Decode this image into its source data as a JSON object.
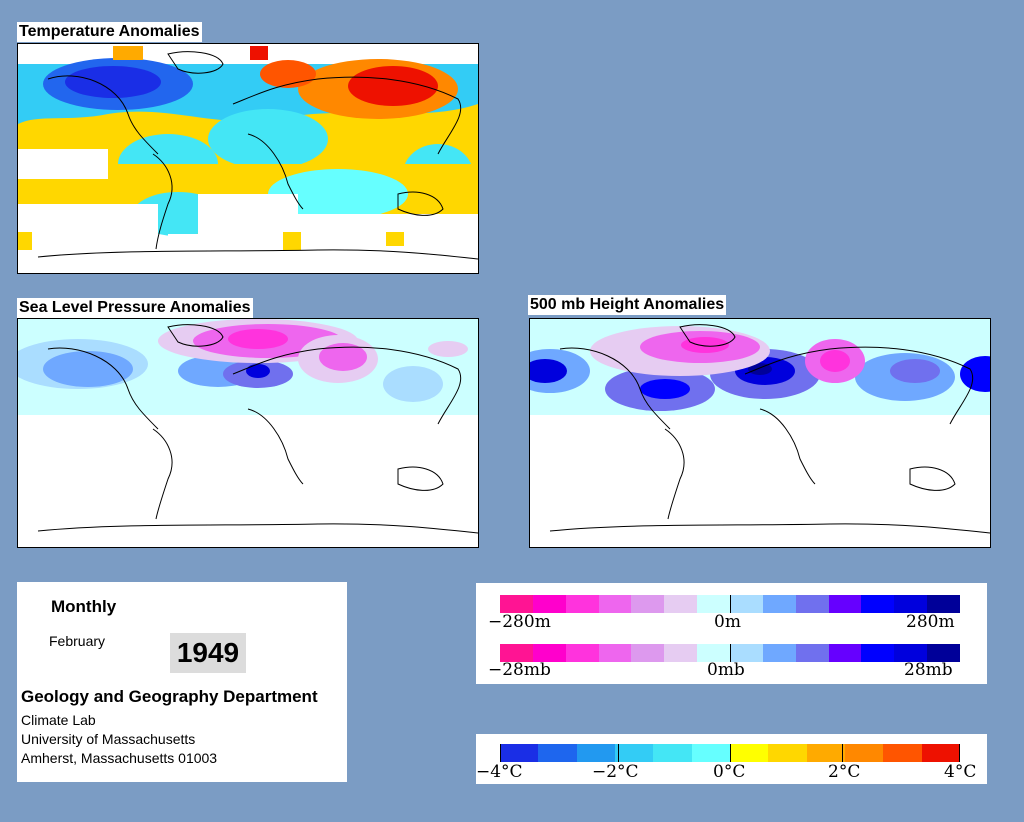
{
  "panels": {
    "temperature_title": "Temperature Anomalies",
    "slp_title": "Sea Level Pressure Anomalies",
    "height_title": "500 mb Height Anomalies"
  },
  "info": {
    "period": "Monthly",
    "month": "February",
    "year": "1949",
    "department": "Geology and Geography Department",
    "lab": "Climate Lab",
    "university": "University of Massachusetts",
    "address": "Amherst, Massachusetts 01003"
  },
  "legend_height": {
    "left": "−280m",
    "center": "0m",
    "right": "280m",
    "colors": [
      "#ff1493",
      "#ff00cc",
      "#ff33dd",
      "#ee66ee",
      "#dd99ee",
      "#e6ccf2",
      "#ccffff",
      "#aaddff",
      "#6fa8ff",
      "#7070ee",
      "#6600ff",
      "#0000ff",
      "#0000dd",
      "#000099"
    ]
  },
  "legend_slp": {
    "left": "−28mb",
    "center": "0mb",
    "right": "28mb",
    "colors": [
      "#ff1493",
      "#ff00cc",
      "#ff33dd",
      "#ee66ee",
      "#dd99ee",
      "#e6ccf2",
      "#ccffff",
      "#aaddff",
      "#6fa8ff",
      "#7070ee",
      "#6600ff",
      "#0000ff",
      "#0000dd",
      "#000099"
    ]
  },
  "legend_temp": {
    "labels": [
      "−4°C",
      "−2°C",
      "0°C",
      "2°C",
      "4°C"
    ],
    "colors": [
      "#1a2ee6",
      "#1e66ee",
      "#2299f0",
      "#33ccf5",
      "#44e6f5",
      "#66ffff",
      "#ffff00",
      "#ffd700",
      "#ffaa00",
      "#ff8800",
      "#ff5500",
      "#ee1100"
    ]
  },
  "colors": {
    "background": "#7b9cc4"
  }
}
